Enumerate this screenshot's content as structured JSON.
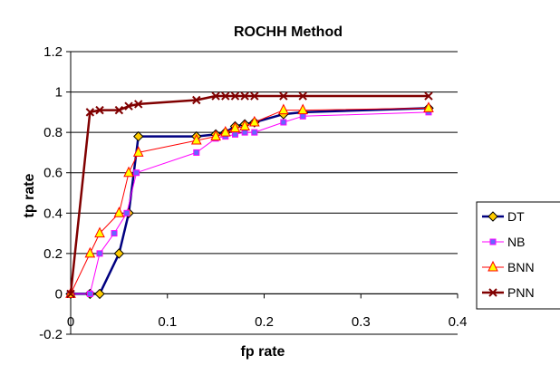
{
  "chart_data": {
    "type": "line",
    "title": "ROCHH Method",
    "xlabel": "fp rate",
    "ylabel": "tp rate",
    "xlim": [
      0,
      0.4
    ],
    "ylim": [
      -0.2,
      1.2
    ],
    "xticks": [
      "0",
      "0.1",
      "0.2",
      "0.3",
      "0.4"
    ],
    "yticks": [
      "-0.2",
      "0",
      "0.2",
      "0.4",
      "0.6",
      "0.8",
      "1",
      "1.2"
    ],
    "grid": "horizontal",
    "legend_position": "right",
    "series": [
      {
        "name": "DT",
        "color": "#000080",
        "marker": "diamond",
        "marker_color": "#ffcc00",
        "x": [
          0,
          0.02,
          0.03,
          0.05,
          0.06,
          0.07,
          0.13,
          0.15,
          0.16,
          0.17,
          0.18,
          0.19,
          0.22,
          0.24,
          0.37
        ],
        "y": [
          0,
          0,
          0,
          0.2,
          0.4,
          0.78,
          0.78,
          0.79,
          0.8,
          0.83,
          0.84,
          0.85,
          0.89,
          0.9,
          0.92
        ]
      },
      {
        "name": "NB",
        "color": "#ff00ff",
        "marker": "square",
        "marker_color": "#6666ff",
        "x": [
          0,
          0.02,
          0.03,
          0.045,
          0.058,
          0.068,
          0.13,
          0.15,
          0.16,
          0.17,
          0.18,
          0.19,
          0.22,
          0.24,
          0.37
        ],
        "y": [
          0,
          0,
          0.2,
          0.3,
          0.4,
          0.6,
          0.7,
          0.77,
          0.78,
          0.79,
          0.8,
          0.8,
          0.85,
          0.88,
          0.9
        ]
      },
      {
        "name": "BNN",
        "color": "#ff0000",
        "marker": "triangle",
        "marker_color": "#ffff00",
        "x": [
          0,
          0.02,
          0.03,
          0.05,
          0.06,
          0.07,
          0.13,
          0.15,
          0.16,
          0.17,
          0.18,
          0.19,
          0.22,
          0.24,
          0.37
        ],
        "y": [
          0,
          0.2,
          0.3,
          0.4,
          0.6,
          0.7,
          0.76,
          0.78,
          0.8,
          0.82,
          0.83,
          0.85,
          0.91,
          0.91,
          0.92
        ]
      },
      {
        "name": "PNN",
        "color": "#800000",
        "marker": "x",
        "marker_color": "#800000",
        "x": [
          0,
          0.02,
          0.03,
          0.05,
          0.06,
          0.07,
          0.13,
          0.15,
          0.16,
          0.17,
          0.18,
          0.19,
          0.22,
          0.24,
          0.37
        ],
        "y": [
          0,
          0.9,
          0.91,
          0.91,
          0.93,
          0.94,
          0.96,
          0.98,
          0.98,
          0.98,
          0.98,
          0.98,
          0.98,
          0.98,
          0.98
        ]
      }
    ]
  }
}
